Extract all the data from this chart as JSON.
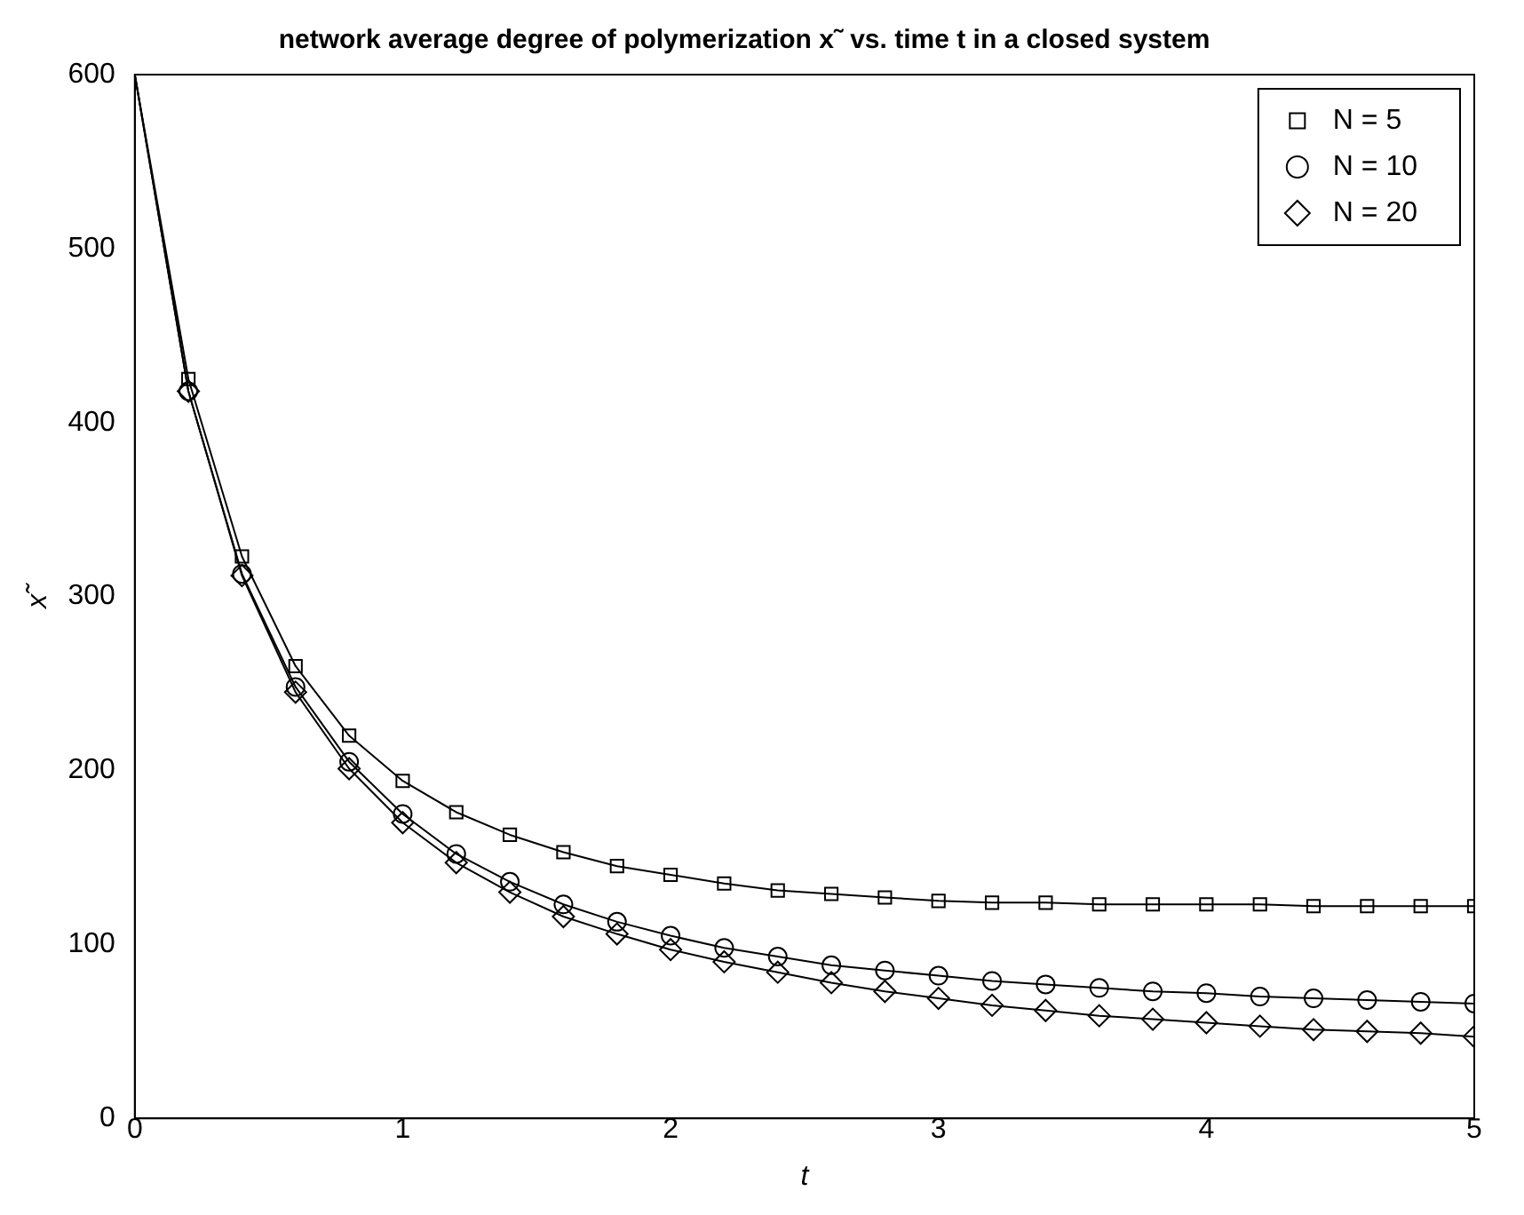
{
  "chart_data": {
    "type": "line",
    "title": "network average degree of polymerization x˜ vs. time t in a closed system",
    "xlabel": "t",
    "ylabel": "x˜",
    "xlim": [
      0,
      5
    ],
    "ylim": [
      0,
      600
    ],
    "xticks": [
      0,
      1,
      2,
      3,
      4,
      5
    ],
    "yticks": [
      0,
      100,
      200,
      300,
      400,
      500,
      600
    ],
    "grid": false,
    "legend": "top right",
    "line_style": "solid",
    "x": [
      0.2,
      0.4,
      0.6,
      0.8,
      1.0,
      1.2,
      1.4,
      1.6,
      1.8,
      2.0,
      2.2,
      2.4,
      2.6,
      2.8,
      3.0,
      3.2,
      3.4,
      3.6,
      3.8,
      4.0,
      4.2,
      4.4,
      4.6,
      4.8,
      5.0
    ],
    "series": [
      {
        "color": "#000000",
        "marker": "none",
        "x": [
          0,
          0.2,
          0.4,
          0.6,
          0.8,
          1.0,
          1.2,
          1.4,
          1.6,
          1.8,
          2.0,
          2.2,
          2.4,
          2.6,
          2.8,
          3.0,
          3.2,
          3.4,
          3.6,
          3.8,
          4.0,
          4.2,
          4.4,
          4.6,
          4.8,
          5.0
        ],
        "values": [
          600,
          425,
          323,
          260,
          220,
          194,
          176,
          163,
          153,
          145,
          140,
          135,
          131,
          129,
          127,
          125,
          124,
          124,
          123,
          123,
          123,
          123,
          122,
          122,
          122,
          122
        ]
      },
      {
        "color": "#000000",
        "marker": "none",
        "x": [
          0,
          0.2,
          0.4,
          0.6,
          0.8,
          1.0,
          1.2,
          1.4,
          1.6,
          1.8,
          2.0,
          2.2,
          2.4,
          2.6,
          2.8,
          3.0,
          3.2,
          3.4,
          3.6,
          3.8,
          4.0,
          4.2,
          4.4,
          4.6,
          4.8,
          5.0
        ],
        "values": [
          600,
          418,
          313,
          248,
          205,
          175,
          152,
          136,
          123,
          113,
          105,
          98,
          93,
          88,
          85,
          82,
          79,
          77,
          75,
          73,
          72,
          70,
          69,
          68,
          67,
          66
        ]
      },
      {
        "color": "#000000",
        "marker": "none",
        "x": [
          0,
          0.2,
          0.4,
          0.6,
          0.8,
          1.0,
          1.2,
          1.4,
          1.6,
          1.8,
          2.0,
          2.2,
          2.4,
          2.6,
          2.8,
          3.0,
          3.2,
          3.4,
          3.6,
          3.8,
          4.0,
          4.2,
          4.4,
          4.6,
          4.8,
          5.0
        ],
        "values": [
          600,
          418,
          312,
          245,
          201,
          170,
          147,
          130,
          116,
          106,
          97,
          90,
          84,
          78,
          73,
          69,
          65,
          62,
          59,
          57,
          55,
          53,
          51,
          50,
          49,
          47
        ]
      },
      {
        "type": "scatter",
        "name": "N = 5",
        "color": "#000000",
        "marker": "square",
        "values": [
          425,
          323,
          260,
          220,
          194,
          176,
          163,
          153,
          145,
          140,
          135,
          131,
          129,
          127,
          125,
          124,
          124,
          123,
          123,
          123,
          123,
          122,
          122,
          122,
          122
        ]
      },
      {
        "type": "scatter",
        "name": "N = 10",
        "color": "#000000",
        "marker": "circle",
        "values": [
          418,
          313,
          248,
          205,
          175,
          152,
          136,
          123,
          113,
          105,
          98,
          93,
          88,
          85,
          82,
          79,
          77,
          75,
          73,
          72,
          70,
          69,
          68,
          67,
          66
        ]
      },
      {
        "type": "scatter",
        "name": "N = 20",
        "color": "#000000",
        "marker": "diamond",
        "values": [
          418,
          312,
          245,
          201,
          170,
          147,
          130,
          116,
          106,
          97,
          90,
          84,
          78,
          73,
          69,
          65,
          62,
          59,
          57,
          55,
          53,
          51,
          50,
          49,
          47
        ]
      }
    ]
  }
}
